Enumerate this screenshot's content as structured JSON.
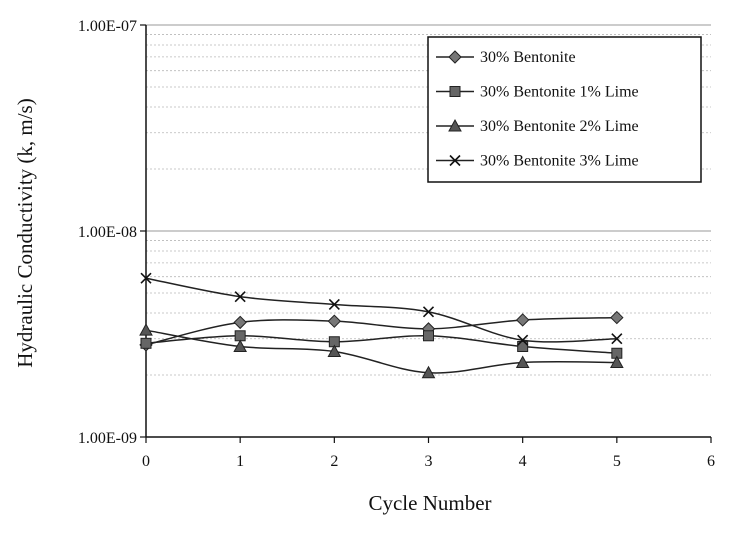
{
  "chart_data": {
    "type": "line",
    "title": "",
    "xlabel": "Cycle Number",
    "ylabel": "Hydraulic Conductivity (k, m/s)",
    "x_scale": "linear",
    "y_scale": "log",
    "xlim": [
      0,
      6
    ],
    "ylim": [
      1e-09,
      1e-07
    ],
    "x_ticks": [
      "0",
      "1",
      "2",
      "3",
      "4",
      "5",
      "6"
    ],
    "y_ticks": [
      "1.00E-09",
      "1.00E-08",
      "1.00E-07"
    ],
    "grid": "horizontal minor log gridlines",
    "legend_position": "top-right",
    "x": [
      0,
      1,
      2,
      3,
      4,
      5
    ],
    "series": [
      {
        "name": "30% Bentonite",
        "marker": "diamond",
        "values": [
          2.8e-09,
          3.6e-09,
          3.65e-09,
          3.35e-09,
          3.7e-09,
          3.8e-09
        ]
      },
      {
        "name": "30% Bentonite 1% Lime",
        "marker": "square",
        "values": [
          2.85e-09,
          3.1e-09,
          2.9e-09,
          3.1e-09,
          2.75e-09,
          2.55e-09
        ]
      },
      {
        "name": "30% Bentonite 2% Lime",
        "marker": "triangle",
        "values": [
          3.3e-09,
          2.75e-09,
          2.6e-09,
          2.05e-09,
          2.3e-09,
          2.3e-09
        ]
      },
      {
        "name": "30% Bentonite 3% Lime",
        "marker": "x",
        "values": [
          5.9e-09,
          4.8e-09,
          4.4e-09,
          4.05e-09,
          2.95e-09,
          3e-09
        ]
      }
    ]
  }
}
